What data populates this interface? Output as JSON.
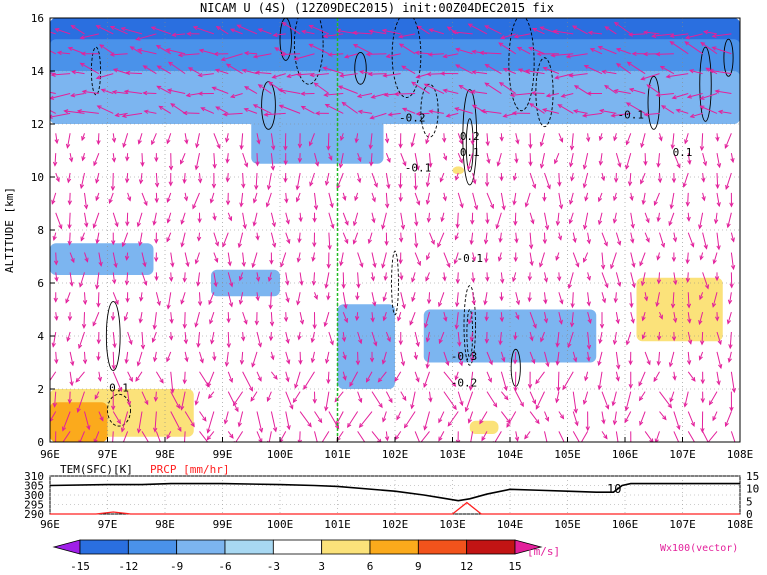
{
  "title": "NICAM U (4S) (12Z09DEC2015) init:00Z04DEC2015 fix",
  "chart_data": [
    {
      "type": "heatmap",
      "name": "U wind cross-section",
      "ylabel": "ALTITUDE [km]",
      "x_ticks": [
        "96E",
        "97E",
        "98E",
        "99E",
        "100E",
        "101E",
        "102E",
        "103E",
        "104E",
        "105E",
        "106E",
        "107E",
        "108E"
      ],
      "x_range": [
        96,
        108
      ],
      "y_ticks": [
        "0",
        "2",
        "4",
        "6",
        "8",
        "10",
        "12",
        "14",
        "16"
      ],
      "y_range": [
        0,
        16
      ],
      "grid": true,
      "marker_line_x": 101,
      "shaded_regions": [
        {
          "level": -12,
          "x0": 96.0,
          "x1": 108.0,
          "y0": 14.6,
          "y1": 16.0
        },
        {
          "level": -9,
          "x0": 96.0,
          "x1": 108.0,
          "y0": 13.3,
          "y1": 15.2
        },
        {
          "level": -6,
          "x0": 96.0,
          "x1": 108.0,
          "y0": 12.0,
          "y1": 14.0
        },
        {
          "level": -6,
          "x0": 99.5,
          "x1": 101.8,
          "y0": 10.5,
          "y1": 12.3
        },
        {
          "level": -6,
          "x0": 96.0,
          "x1": 97.8,
          "y0": 6.3,
          "y1": 7.5
        },
        {
          "level": -6,
          "x0": 98.8,
          "x1": 100.0,
          "y0": 5.5,
          "y1": 6.5
        },
        {
          "level": -6,
          "x0": 101.0,
          "x1": 102.0,
          "y0": 2.0,
          "y1": 5.2
        },
        {
          "level": -6,
          "x0": 102.5,
          "x1": 105.5,
          "y0": 3.0,
          "y1": 5.0
        },
        {
          "level": 3,
          "x0": 106.2,
          "x1": 107.7,
          "y0": 3.8,
          "y1": 6.2
        },
        {
          "level": 3,
          "x0": 103.0,
          "x1": 103.2,
          "y0": 10.1,
          "y1": 10.4
        },
        {
          "level": 3,
          "x0": 96.0,
          "x1": 98.5,
          "y0": 0.2,
          "y1": 2.0
        },
        {
          "level": 6,
          "x0": 96.0,
          "x1": 97.0,
          "y0": 0.0,
          "y1": 1.5
        },
        {
          "level": 3,
          "x0": 103.3,
          "x1": 103.8,
          "y0": 0.3,
          "y1": 0.8
        }
      ],
      "contour_labels": [
        "0.1",
        "-0.2",
        "-0.1",
        "0.2",
        "0.1",
        "-0.1",
        "0.1",
        "-0.1",
        "-0.3",
        "-0.2",
        "0.1"
      ],
      "wind_field": {
        "x_spacing": 0.25,
        "y_spacing": 0.75,
        "description": "per-arrow vectors are procedurally approximated"
      }
    },
    {
      "type": "line",
      "name": "Surface time series",
      "labels": [
        "TEM(SFC)[K]",
        "PRCP [mm/hr]"
      ],
      "left_axis": {
        "ticks": [
          "310",
          "305",
          "300",
          "295",
          "290"
        ],
        "range": [
          290,
          310
        ]
      },
      "right_axis": {
        "ticks": [
          "15",
          "10",
          "5",
          "0"
        ],
        "range": [
          0,
          15
        ]
      },
      "x_ticks": [
        "96E",
        "97E",
        "98E",
        "99E",
        "100E",
        "101E",
        "102E",
        "103E",
        "104E",
        "105E",
        "106E",
        "107E",
        "108E"
      ],
      "series": [
        {
          "name": "TEM(SFC)[K]",
          "color": "#000000",
          "x": [
            96.0,
            97.0,
            97.6,
            98.1,
            99.0,
            100.0,
            100.6,
            101.0,
            102.0,
            102.5,
            102.8,
            103.1,
            103.3,
            103.6,
            104.0,
            104.5,
            105.0,
            105.5,
            105.8,
            105.95,
            106.1,
            106.5,
            107.0,
            108.0
          ],
          "y": [
            305,
            305.5,
            305.5,
            306,
            306,
            305.5,
            305,
            304.5,
            302,
            300,
            298.5,
            297,
            298,
            300.5,
            303,
            302.5,
            302,
            301.5,
            301.5,
            305,
            306,
            306,
            306,
            306
          ]
        },
        {
          "name": "PRCP [mm/hr]",
          "color": "#ff2020",
          "x": [
            96.0,
            96.8,
            97.1,
            97.4,
            103.0,
            103.25,
            103.5,
            108.0
          ],
          "y": [
            0,
            0,
            0.8,
            0,
            0,
            4.5,
            0,
            0
          ]
        }
      ],
      "annotations": [
        "10"
      ]
    }
  ],
  "colorbar": {
    "levels": [
      "-15",
      "-12",
      "-9",
      "-6",
      "-3",
      "3",
      "6",
      "9",
      "12",
      "15"
    ],
    "colors": [
      "#9f1fe8",
      "#2a6fe0",
      "#4a92ea",
      "#7cb5f0",
      "#a8d8f2",
      "#ffffff",
      "#fbe27a",
      "#fbaa1c",
      "#f2531c",
      "#c21414",
      "#e3209b"
    ],
    "unit": "[m/s]"
  },
  "vector_legend": "Wx100(vector)"
}
